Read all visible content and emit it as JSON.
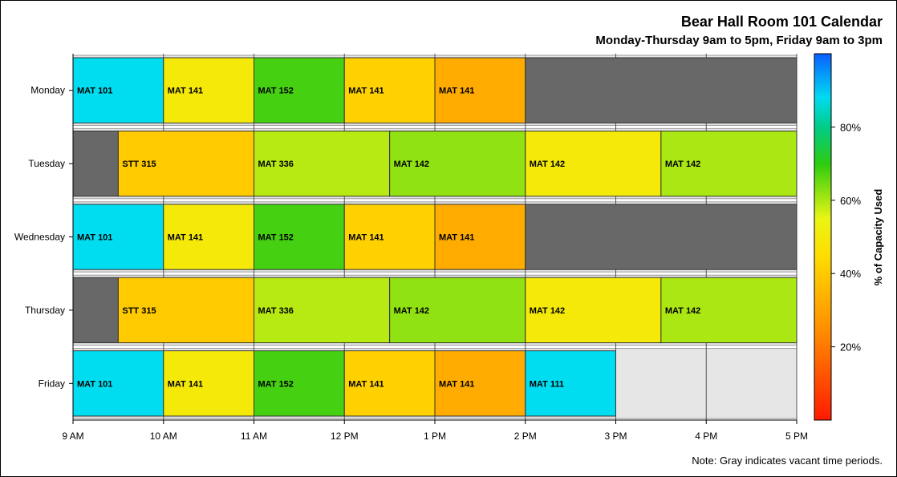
{
  "chart_data": {
    "type": "bar",
    "orientation": "horizontal-timeline",
    "title": "Bear Hall Room 101 Calendar",
    "subtitle": "Monday-Thursday 9am to 5pm, Friday 9am to 3pm",
    "note": "Note: Gray indicates vacant time periods.",
    "x_range": [
      9,
      17
    ],
    "x_ticks": [
      {
        "value": 9,
        "label": "9 AM"
      },
      {
        "value": 10,
        "label": "10 AM"
      },
      {
        "value": 11,
        "label": "11 AM"
      },
      {
        "value": 12,
        "label": "12 PM"
      },
      {
        "value": 13,
        "label": "1 PM"
      },
      {
        "value": 14,
        "label": "2 PM"
      },
      {
        "value": 15,
        "label": "3 PM"
      },
      {
        "value": 16,
        "label": "4 PM"
      },
      {
        "value": 17,
        "label": "5 PM"
      }
    ],
    "days": [
      "Monday",
      "Tuesday",
      "Wednesday",
      "Thursday",
      "Friday"
    ],
    "colorbar": {
      "label": "% of Capacity Used",
      "range": [
        0,
        100
      ],
      "ticks": [
        {
          "value": 20,
          "label": "20%"
        },
        {
          "value": 40,
          "label": "40%"
        },
        {
          "value": 60,
          "label": "60%"
        },
        {
          "value": 80,
          "label": "80%"
        }
      ]
    },
    "vacant_color": "#686868",
    "background_row_color": "#e6e6e6",
    "bookings": [
      {
        "day": "Monday",
        "start": 9,
        "end": 10,
        "course": "MAT 101",
        "capacity": 88
      },
      {
        "day": "Monday",
        "start": 10,
        "end": 11,
        "course": "MAT 141",
        "capacity": 50
      },
      {
        "day": "Monday",
        "start": 11,
        "end": 12,
        "course": "MAT 152",
        "capacity": 68
      },
      {
        "day": "Monday",
        "start": 12,
        "end": 13,
        "course": "MAT 141",
        "capacity": 42
      },
      {
        "day": "Monday",
        "start": 13,
        "end": 14,
        "course": "MAT 141",
        "capacity": 32
      },
      {
        "day": "Monday",
        "start": 14,
        "end": 17,
        "course": "",
        "vacant": true
      },
      {
        "day": "Tuesday",
        "start": 9,
        "end": 9.5,
        "course": "",
        "vacant": true
      },
      {
        "day": "Tuesday",
        "start": 9.5,
        "end": 11,
        "course": "STT 315",
        "capacity": 40
      },
      {
        "day": "Tuesday",
        "start": 11,
        "end": 12.5,
        "course": "MAT 336",
        "capacity": 59
      },
      {
        "day": "Tuesday",
        "start": 12.5,
        "end": 14,
        "course": "MAT 142",
        "capacity": 62
      },
      {
        "day": "Tuesday",
        "start": 14,
        "end": 15.5,
        "course": "MAT 142",
        "capacity": 50
      },
      {
        "day": "Tuesday",
        "start": 15.5,
        "end": 17,
        "course": "MAT 142",
        "capacity": 60
      },
      {
        "day": "Wednesday",
        "start": 9,
        "end": 10,
        "course": "MAT 101",
        "capacity": 88
      },
      {
        "day": "Wednesday",
        "start": 10,
        "end": 11,
        "course": "MAT 141",
        "capacity": 50
      },
      {
        "day": "Wednesday",
        "start": 11,
        "end": 12,
        "course": "MAT 152",
        "capacity": 68
      },
      {
        "day": "Wednesday",
        "start": 12,
        "end": 13,
        "course": "MAT 141",
        "capacity": 42
      },
      {
        "day": "Wednesday",
        "start": 13,
        "end": 14,
        "course": "MAT 141",
        "capacity": 32
      },
      {
        "day": "Wednesday",
        "start": 14,
        "end": 17,
        "course": "",
        "vacant": true
      },
      {
        "day": "Thursday",
        "start": 9,
        "end": 9.5,
        "course": "",
        "vacant": true
      },
      {
        "day": "Thursday",
        "start": 9.5,
        "end": 11,
        "course": "STT 315",
        "capacity": 40
      },
      {
        "day": "Thursday",
        "start": 11,
        "end": 12.5,
        "course": "MAT 336",
        "capacity": 59
      },
      {
        "day": "Thursday",
        "start": 12.5,
        "end": 14,
        "course": "MAT 142",
        "capacity": 62
      },
      {
        "day": "Thursday",
        "start": 14,
        "end": 15.5,
        "course": "MAT 142",
        "capacity": 50
      },
      {
        "day": "Thursday",
        "start": 15.5,
        "end": 17,
        "course": "MAT 142",
        "capacity": 60
      },
      {
        "day": "Friday",
        "start": 9,
        "end": 10,
        "course": "MAT 101",
        "capacity": 88
      },
      {
        "day": "Friday",
        "start": 10,
        "end": 11,
        "course": "MAT 141",
        "capacity": 50
      },
      {
        "day": "Friday",
        "start": 11,
        "end": 12,
        "course": "MAT 152",
        "capacity": 68
      },
      {
        "day": "Friday",
        "start": 12,
        "end": 13,
        "course": "MAT 141",
        "capacity": 42
      },
      {
        "day": "Friday",
        "start": 13,
        "end": 14,
        "course": "MAT 141",
        "capacity": 32
      },
      {
        "day": "Friday",
        "start": 14,
        "end": 15,
        "course": "MAT 111",
        "capacity": 88
      }
    ]
  }
}
